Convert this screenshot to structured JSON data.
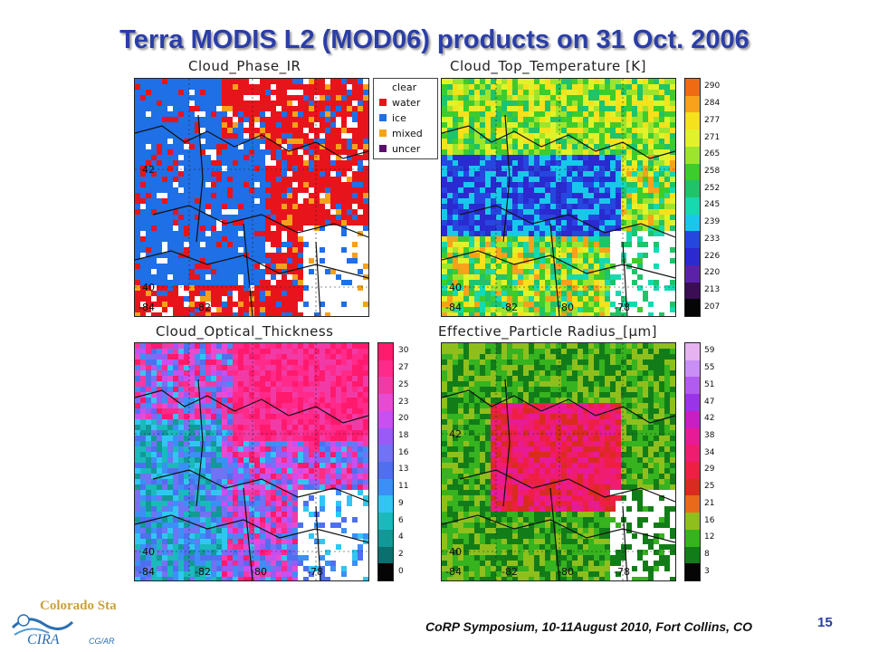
{
  "title": "Terra MODIS L2 (MOD06) products on 31 Oct. 2006",
  "panels": {
    "phase": {
      "title": "Cloud_Phase_IR",
      "lat_labels": [
        "42",
        "40"
      ],
      "lon_labels": [
        "-84",
        "-82"
      ]
    },
    "ctt": {
      "title": "Cloud_Top_Temperature [K]",
      "lat_labels": [
        "40"
      ],
      "lon_labels": [
        "-84",
        "-82",
        "-80",
        "-78"
      ]
    },
    "cot": {
      "title": "Cloud_Optical_Thickness",
      "lat_labels": [
        "40"
      ],
      "lon_labels": [
        "-84",
        "-82",
        "-80",
        "-78"
      ]
    },
    "epr": {
      "title": "Effective_Particle Radius_[μm]",
      "lat_labels": [
        "42",
        "40"
      ],
      "lon_labels": [
        "-84",
        "-82",
        "-80",
        "-78"
      ]
    }
  },
  "legend": [
    {
      "label": "clear",
      "color": "#ffffff"
    },
    {
      "label": "water",
      "color": "#e8141c"
    },
    {
      "label": "ice",
      "color": "#1f6fe6"
    },
    {
      "label": "mixed",
      "color": "#f5a21a"
    },
    {
      "label": "uncer",
      "color": "#5a0f6e"
    }
  ],
  "colorbars": {
    "ctt": {
      "ticks": [
        "290",
        "284",
        "277",
        "271",
        "265",
        "258",
        "252",
        "245",
        "239",
        "233",
        "226",
        "220",
        "213",
        "207"
      ],
      "colors": [
        "#f06a14",
        "#f7a21a",
        "#f5e11c",
        "#e2f22a",
        "#9de52d",
        "#3dcc2e",
        "#1fc36a",
        "#16d9b0",
        "#18c8ea",
        "#2646e0",
        "#2a2ad0",
        "#5b22a8",
        "#3a0d55",
        "#050505"
      ]
    },
    "cot": {
      "ticks": [
        "30",
        "27",
        "25",
        "23",
        "20",
        "18",
        "16",
        "13",
        "11",
        "9",
        "6",
        "4",
        "2",
        "0"
      ],
      "colors": [
        "#ff1a6e",
        "#ff2a8a",
        "#f23aa6",
        "#e84bd2",
        "#c84ff0",
        "#9a5af5",
        "#7272f4",
        "#4f6ff0",
        "#3c8ff5",
        "#31c6f2",
        "#1ab9bc",
        "#139898",
        "#0c6f6f",
        "#050505"
      ]
    },
    "epr": {
      "ticks": [
        "59",
        "55",
        "51",
        "47",
        "42",
        "38",
        "34",
        "29",
        "25",
        "21",
        "16",
        "12",
        "8",
        "3"
      ],
      "colors": [
        "#e6b3f0",
        "#c98ff4",
        "#b15bf0",
        "#9a34e8",
        "#c81ec2",
        "#e81a96",
        "#ef1c70",
        "#ee1f42",
        "#d92b1f",
        "#ea6a1b",
        "#8fbf1d",
        "#36b31e",
        "#127d18",
        "#050505"
      ]
    }
  },
  "footer": "CoRP Symposium, 10-11August 2010, Fort Collins, CO",
  "page_number": "15",
  "logo": {
    "top_text": "Colorado State",
    "bottom_text": "CIRA",
    "sub_text": "CG/AR"
  }
}
